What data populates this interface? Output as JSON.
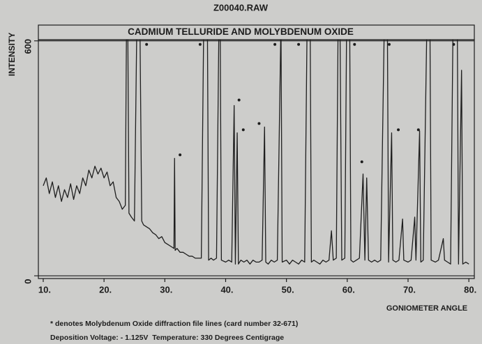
{
  "chart_data": {
    "type": "line",
    "title": "Z00040.RAW",
    "subtitle": "CADMIUM TELLURIDE AND MOLYBDENUM OXIDE",
    "y_label": "INTENSITY",
    "x_label": "GONIOMETER ANGLE",
    "notes": [
      "* denotes Molybdenum Oxide diffraction file lines (card number 32-671)",
      "Deposition Voltage: - 1.125V  Temperature: 330 Degrees Centigrage"
    ],
    "color": "#1e1e1e",
    "xlim": [
      9.2,
      80.9
    ],
    "ylim": [
      -7,
      603
    ],
    "xticks": [
      {
        "value": 10,
        "label": "10."
      },
      {
        "value": 20,
        "label": "20."
      },
      {
        "value": 30,
        "label": "30."
      },
      {
        "value": 40,
        "label": "40."
      },
      {
        "value": 50,
        "label": "50."
      },
      {
        "value": 60,
        "label": "60."
      },
      {
        "value": 70,
        "label": "70."
      },
      {
        "value": 80,
        "label": "80."
      }
    ],
    "yticks": [
      0,
      600
    ],
    "x": [
      10,
      10.5,
      11,
      11.5,
      12,
      12.5,
      13,
      13.5,
      14,
      14.5,
      15,
      15.5,
      16,
      16.5,
      17,
      17.5,
      18,
      18.5,
      19,
      19.5,
      20,
      20.5,
      21,
      21.5,
      22,
      22.5,
      23,
      23.5,
      23.7,
      23.9,
      24.1,
      24.5,
      25,
      25.4,
      25.9,
      26.2,
      26.5,
      27,
      27.5,
      28,
      28.5,
      29,
      29.5,
      30,
      30.5,
      31,
      31.5,
      31.6,
      31.7,
      32,
      32.5,
      33,
      33.5,
      34,
      34.5,
      35,
      35.5,
      36,
      36.4,
      37,
      37.2,
      37.6,
      38,
      38.5,
      38.9,
      39.1,
      39.3,
      40,
      40.5,
      41,
      41.4,
      41.6,
      41.9,
      42.1,
      42.5,
      43,
      43.5,
      44,
      44.5,
      45,
      45.5,
      46,
      46.4,
      46.6,
      47,
      47.5,
      48,
      48.5,
      49.1,
      49.3,
      50,
      50.5,
      51,
      51.5,
      52,
      52.5,
      53,
      53.4,
      53.9,
      54.1,
      54.5,
      55,
      55.5,
      56,
      56.5,
      57,
      57.4,
      57.7,
      58.2,
      58.5,
      58.8,
      59.1,
      59.6,
      59.9,
      60.4,
      60.6,
      61,
      61.5,
      62,
      62.6,
      62.9,
      63.2,
      63.5,
      64,
      64.5,
      65,
      65.5,
      66.1,
      66.6,
      66.8,
      67.3,
      67.5,
      68,
      68.5,
      69.1,
      69.3,
      70,
      70.5,
      71.1,
      71.3,
      71.9,
      72.1,
      72.5,
      73.1,
      73.6,
      73.8,
      74.5,
      75,
      75.8,
      76,
      76.5,
      77,
      77.4,
      78.1,
      78.3,
      78.8,
      79,
      79.5,
      80
    ],
    "values": [
      230,
      250,
      210,
      240,
      200,
      230,
      190,
      220,
      200,
      235,
      195,
      230,
      210,
      250,
      230,
      270,
      250,
      280,
      260,
      275,
      250,
      265,
      230,
      240,
      200,
      190,
      170,
      180,
      650,
      650,
      160,
      150,
      140,
      650,
      650,
      140,
      130,
      125,
      120,
      110,
      105,
      95,
      100,
      85,
      80,
      75,
      70,
      300,
      65,
      70,
      60,
      60,
      55,
      50,
      50,
      45,
      45,
      45,
      650,
      650,
      40,
      45,
      40,
      45,
      650,
      650,
      40,
      35,
      40,
      35,
      435,
      30,
      365,
      30,
      40,
      35,
      40,
      30,
      40,
      35,
      35,
      40,
      380,
      35,
      30,
      40,
      35,
      40,
      650,
      35,
      40,
      30,
      40,
      35,
      30,
      40,
      35,
      650,
      650,
      35,
      40,
      35,
      30,
      40,
      35,
      40,
      115,
      40,
      45,
      650,
      650,
      40,
      45,
      650,
      650,
      40,
      35,
      40,
      45,
      260,
      40,
      250,
      40,
      35,
      40,
      35,
      40,
      650,
      650,
      35,
      365,
      40,
      35,
      40,
      145,
      40,
      35,
      40,
      150,
      40,
      370,
      35,
      40,
      650,
      650,
      40,
      35,
      40,
      95,
      40,
      35,
      30,
      650,
      650,
      30,
      525,
      30,
      35,
      30
    ],
    "markers": {
      "x": [
        27.0,
        35.8,
        32.5,
        42.2,
        42.9,
        45.5,
        48.1,
        52.0,
        61.2,
        62.4,
        66.9,
        68.4,
        71.7,
        77.5
      ],
      "y": [
        591,
        591,
        309,
        449,
        373,
        389,
        591,
        591,
        591,
        291,
        591,
        373,
        373,
        591
      ]
    }
  }
}
